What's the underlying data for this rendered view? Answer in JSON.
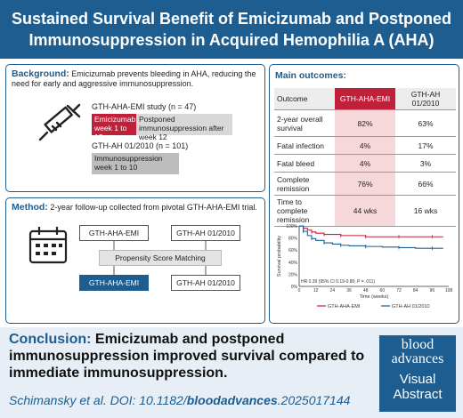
{
  "title_line1": "Sustained Survival Benefit of Emicizumab and Postponed",
  "title_line2": "Immunosuppression in Acquired Hemophilia A (AHA)",
  "background": {
    "label": "Background:",
    "text": "Emicizumab prevents bleeding in AHA, reducing the need for early and aggressive immunosuppression.",
    "study1_title": "GTH-AHA-EMI study (n = 47)",
    "study1_bar1": "Emicizumab week 1 to 12",
    "study1_bar2": "Postponed immunosuppression after week 12",
    "study2_title": "GTH-AH 01/2010 (n = 101)",
    "study2_bar": "Immunosuppression week 1 to 10"
  },
  "method": {
    "label": "Method:",
    "text": "2-year follow-up collected from pivotal GTH-AHA-EMI trial.",
    "box_tl": "GTH-AHA-EMI",
    "box_tr": "GTH-AH 01/2010",
    "box_mid": "Propensity Score Matching",
    "box_bl": "GTH-AHA-EMI",
    "box_br": "GTH-AH 01/2010"
  },
  "outcomes": {
    "title": "Main outcomes:",
    "headers": [
      "Outcome",
      "GTH-AHA-EMI",
      "GTH-AH 01/2010"
    ],
    "rows": [
      {
        "outcome": "2-year overall survival",
        "emi": "82%",
        "ah": "63%"
      },
      {
        "outcome": "Fatal infection",
        "emi": "4%",
        "ah": "17%"
      },
      {
        "outcome": "Fatal bleed",
        "emi": "4%",
        "ah": "3%"
      },
      {
        "outcome": "Complete remission",
        "emi": "76%",
        "ah": "66%"
      },
      {
        "outcome": "Time to complete remission",
        "emi": "44 wks",
        "ah": "16 wks"
      }
    ]
  },
  "chart_data": {
    "type": "line",
    "ylabel": "Survival probability",
    "xlabel": "Time (weeks)",
    "x_ticks": [
      "0",
      "12",
      "24",
      "36",
      "48",
      "60",
      "72",
      "84",
      "96",
      "108"
    ],
    "y_ticks": [
      "0%",
      "20%",
      "40%",
      "60%",
      "80%",
      "100%"
    ],
    "xlim": [
      0,
      108
    ],
    "ylim": [
      0,
      100
    ],
    "annotation": "HR 0.39 (95% CI 0.19-0.80; P = .011)",
    "series": [
      {
        "name": "GTH-AHA-EMI",
        "color": "#c0203a",
        "x": [
          0,
          3,
          6,
          9,
          12,
          18,
          24,
          30,
          36,
          48,
          60,
          72,
          84,
          96,
          104
        ],
        "y": [
          100,
          96,
          93,
          90,
          88,
          86,
          86,
          84,
          84,
          82,
          82,
          82,
          82,
          82,
          82
        ]
      },
      {
        "name": "GTH-AH 01/2010",
        "color": "#1d5d8f",
        "x": [
          0,
          3,
          6,
          9,
          12,
          18,
          24,
          30,
          36,
          48,
          60,
          72,
          84,
          96,
          104
        ],
        "y": [
          100,
          91,
          84,
          79,
          76,
          72,
          70,
          68,
          67,
          66,
          65,
          64,
          63,
          63,
          63
        ]
      }
    ]
  },
  "conclusion": {
    "label": "Conclusion:",
    "text": "Emicizumab and postponed immunosuppression improved survival compared to immediate immunosuppression."
  },
  "citation": {
    "prefix": "Schimansky et al. DOI: 10.1182/",
    "bold": "bloodadvances",
    "suffix": ".2025017144"
  },
  "logo": {
    "line1": "blood",
    "line2": "advances",
    "line3": "Visual",
    "line4": "Abstract"
  },
  "colors": {
    "primary": "#1d5d8f",
    "accent": "#c0203a",
    "light_red": "#f6d7da",
    "grey": "#c8c8c8"
  }
}
